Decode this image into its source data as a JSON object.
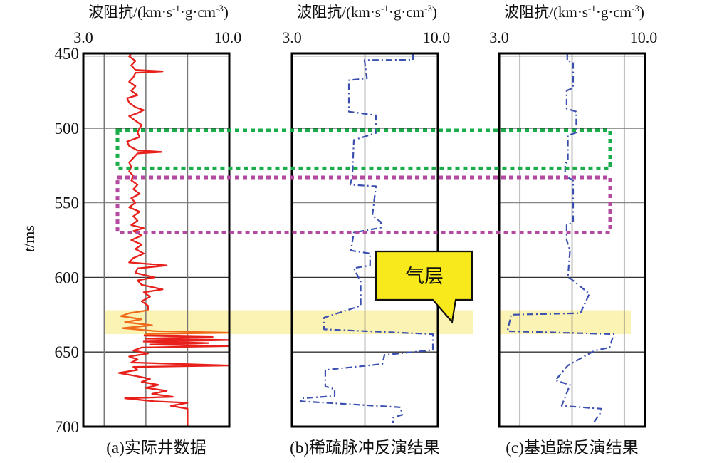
{
  "chart_data": {
    "type": "line",
    "y_axis": {
      "label_italic": "t",
      "label_rest": "/ms",
      "range": [
        450,
        700
      ],
      "ticks": [
        "450",
        "500",
        "550",
        "600",
        "650",
        "700"
      ],
      "tick_values": [
        450,
        500,
        550,
        600,
        650,
        700
      ]
    },
    "x_axis_title": {
      "main": "波阻抗/(km·s",
      "sup1": "-1",
      "mid": "·g·cm",
      "sup2": "-3",
      "end": ")"
    },
    "x_range": [
      3.0,
      10.0
    ],
    "x_tick_labels": [
      "3.0",
      "10.0"
    ],
    "panels": [
      {
        "caption": "(a)实际井数据",
        "gridlines_x": [
          4,
          6,
          8
        ],
        "series": [
          {
            "name": "well-log",
            "color": "#e8201c",
            "style": "solid",
            "points": [
              [
                450,
                5.3
              ],
              [
                452,
                5.2
              ],
              [
                455,
                5.5
              ],
              [
                458,
                5.3
              ],
              [
                461,
                5.5
              ],
              [
                462,
                6.8
              ],
              [
                463,
                5.5
              ],
              [
                466,
                5.4
              ],
              [
                469,
                5.2
              ],
              [
                472,
                5.5
              ],
              [
                475,
                5.3
              ],
              [
                478,
                5.6
              ],
              [
                480,
                5.1
              ],
              [
                483,
                5.2
              ],
              [
                486,
                5.5
              ],
              [
                488,
                5.9
              ],
              [
                490,
                5.6
              ],
              [
                492,
                5.2
              ],
              [
                495,
                5.5
              ],
              [
                498,
                5.8
              ],
              [
                500,
                5.7
              ],
              [
                503,
                5.6
              ],
              [
                506,
                5.7
              ],
              [
                509,
                5.1
              ],
              [
                512,
                5.2
              ],
              [
                515,
                5.6
              ],
              [
                516,
                6.75
              ],
              [
                517,
                5.6
              ],
              [
                520,
                5.4
              ],
              [
                523,
                5.2
              ],
              [
                526,
                5.3
              ],
              [
                529,
                5.2
              ],
              [
                532,
                5.4
              ],
              [
                535,
                5.3
              ],
              [
                538,
                5.6
              ],
              [
                541,
                5.4
              ],
              [
                544,
                5.7
              ],
              [
                547,
                5.3
              ],
              [
                550,
                5.5
              ],
              [
                553,
                5.2
              ],
              [
                556,
                5.7
              ],
              [
                559,
                5.4
              ],
              [
                562,
                5.6
              ],
              [
                565,
                5.3
              ],
              [
                567,
                5.9
              ],
              [
                569,
                5.4
              ],
              [
                572,
                5.8
              ],
              [
                575,
                5.3
              ],
              [
                578,
                5.8
              ],
              [
                581,
                5.5
              ],
              [
                584,
                5.9
              ],
              [
                587,
                5.4
              ],
              [
                590,
                5.2
              ],
              [
                592,
                7.0
              ],
              [
                594,
                5.6
              ],
              [
                597,
                5.5
              ],
              [
                600,
                6.4
              ],
              [
                602,
                5.6
              ],
              [
                605,
                5.8
              ],
              [
                608,
                6.8
              ],
              [
                610,
                5.9
              ],
              [
                613,
                6.2
              ],
              [
                616,
                5.8
              ],
              [
                619,
                6.1
              ],
              [
                622,
                6.1
              ]
            ]
          },
          {
            "name": "well-log-gas-zone",
            "color": "#f06a1a",
            "style": "solid",
            "points": [
              [
                622,
                6.1
              ],
              [
                624,
                5.2
              ],
              [
                626,
                4.8
              ],
              [
                628,
                5.8
              ],
              [
                630,
                5.0
              ],
              [
                632,
                6.3
              ],
              [
                634,
                4.9
              ],
              [
                636,
                6.5
              ],
              [
                637,
                10.0
              ],
              [
                638,
                6.0
              ],
              [
                639,
                5.9
              ]
            ]
          },
          {
            "name": "well-log-lower",
            "color": "#e8201c",
            "style": "solid",
            "points": [
              [
                639,
                5.9
              ],
              [
                640,
                9.2
              ],
              [
                641,
                6.0
              ],
              [
                642,
                10.0
              ],
              [
                643,
                5.9
              ],
              [
                644,
                9.0
              ],
              [
                645,
                6.2
              ],
              [
                646,
                10.0
              ],
              [
                647,
                5.8
              ],
              [
                649,
                5.4
              ],
              [
                651,
                6.1
              ],
              [
                653,
                5.2
              ],
              [
                655,
                5.6
              ],
              [
                657,
                5.3
              ],
              [
                659,
                10.0
              ],
              [
                660,
                5.4
              ],
              [
                662,
                5.6
              ],
              [
                664,
                4.7
              ],
              [
                666,
                5.5
              ],
              [
                668,
                6.2
              ],
              [
                670,
                5.8
              ],
              [
                672,
                6.6
              ],
              [
                674,
                6.0
              ],
              [
                676,
                7.0
              ],
              [
                678,
                6.3
              ],
              [
                680,
                7.3
              ],
              [
                681,
                5.0
              ],
              [
                683,
                6.4
              ],
              [
                684,
                8.0
              ],
              [
                686,
                7.2
              ],
              [
                688,
                8.0
              ],
              [
                700,
                8.0
              ]
            ]
          }
        ]
      },
      {
        "caption": "(b)稀疏脉冲反演结果",
        "gridlines_x": [
          6.5
        ],
        "series": [
          {
            "name": "sparse-spike-inversion",
            "color": "#3b4fb0",
            "style": "dashdot",
            "points": [
              [
                450,
                8.8
              ],
              [
                454.3,
                8.8
              ],
              [
                454.5,
                6.48
              ],
              [
                466.7,
                6.6
              ],
              [
                468,
                5.73
              ],
              [
                489,
                5.73
              ],
              [
                491.4,
                7.03
              ],
              [
                503.3,
                7.03
              ],
              [
                508,
                5.97
              ],
              [
                532,
                5.9
              ],
              [
                538,
                5.8
              ],
              [
                539,
                7.03
              ],
              [
                558.6,
                6.86
              ],
              [
                563,
                7.27
              ],
              [
                566.7,
                7.27
              ],
              [
                570,
                5.97
              ],
              [
                582,
                5.83
              ],
              [
                584,
                6.75
              ],
              [
                592,
                6.75
              ],
              [
                593.8,
                5.97
              ],
              [
                603,
                6.3
              ],
              [
                619,
                6.3
              ],
              [
                627,
                4.54
              ],
              [
                634.8,
                4.54
              ],
              [
                638,
                9.76
              ],
              [
                648.6,
                9.76
              ],
              [
                652,
                7.44
              ],
              [
                658,
                7.34
              ],
              [
                662,
                4.6
              ],
              [
                673,
                4.6
              ],
              [
                675,
                5.05
              ],
              [
                679.5,
                5.05
              ],
              [
                681,
                3.44
              ],
              [
                683,
                3.44
              ],
              [
                687,
                8.2
              ],
              [
                692,
                8.3
              ],
              [
                694,
                7.85
              ],
              [
                697.6,
                7.85
              ]
            ]
          }
        ]
      },
      {
        "caption": "(c)基追踪反演结果",
        "gridlines_x": [
          4,
          6.5,
          9
        ],
        "series": [
          {
            "name": "basis-pursuit-inversion",
            "color": "#3b4fb0",
            "style": "dashdot",
            "points": [
              [
                450,
                6.27
              ],
              [
                455,
                6.27
              ],
              [
                456,
                6.55
              ],
              [
                473,
                6.55
              ],
              [
                475,
                6.24
              ],
              [
                487,
                6.24
              ],
              [
                489,
                6.7
              ],
              [
                503,
                6.7
              ],
              [
                505,
                6.3
              ],
              [
                522,
                6.3
              ],
              [
                524,
                6.17
              ],
              [
                532,
                6.17
              ],
              [
                535,
                6.55
              ],
              [
                563,
                6.55
              ],
              [
                565,
                6.24
              ],
              [
                575,
                6.24
              ],
              [
                582,
                6.4
              ],
              [
                600,
                6.3
              ],
              [
                601,
                6.45
              ],
              [
                611,
                7.33
              ],
              [
                624,
                6.9
              ],
              [
                625,
                3.58
              ],
              [
                636,
                3.4
              ],
              [
                638,
                8.5
              ],
              [
                647,
                8.3
              ],
              [
                649,
                7.6
              ],
              [
                659,
                6.3
              ],
              [
                669,
                5.7
              ],
              [
                672,
                6.4
              ],
              [
                686,
                6.0
              ],
              [
                688,
                7.9
              ],
              [
                690,
                7.9
              ],
              [
                698,
                7.5
              ]
            ]
          }
        ]
      }
    ],
    "highlight_boxes": [
      {
        "name": "green-dotted-box",
        "color": "#1aad4a",
        "t_range": [
          501.5,
          527
        ]
      },
      {
        "name": "magenta-dotted-box",
        "color": "#b44aa0",
        "t_range": [
          533,
          570
        ]
      }
    ],
    "gas_band": {
      "color": "#fbf3b4",
      "t_range": [
        622,
        638
      ]
    },
    "annotation": {
      "text": "气层",
      "fill": "#f7e91c"
    }
  }
}
